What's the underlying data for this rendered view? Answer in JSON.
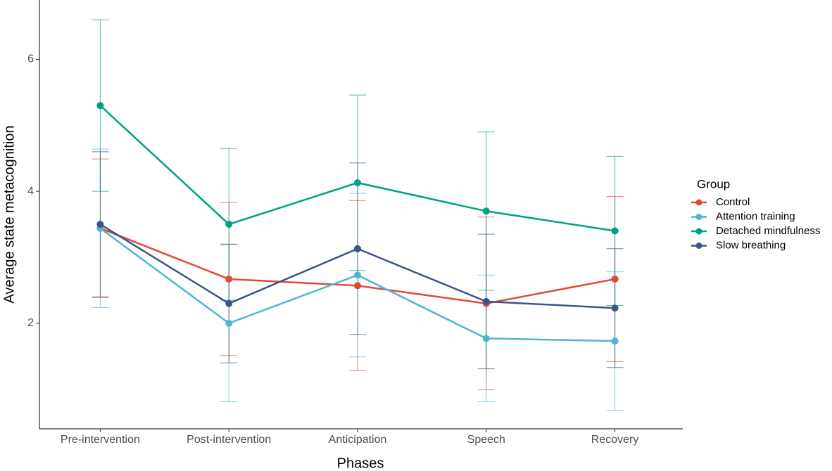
{
  "chart_data": {
    "type": "line",
    "x_label": "Phases",
    "y_label": "Average state metacognition",
    "categories": [
      "Pre-intervention",
      "Post-intervention",
      "Anticipation",
      "Speech",
      "Recovery"
    ],
    "ylim": [
      0.4,
      6.9
    ],
    "yticks": [
      2,
      4,
      6
    ],
    "legend_title": "Group",
    "legend": "right",
    "series": [
      {
        "name": "Control",
        "color": "#e04b36",
        "values": [
          3.44,
          2.67,
          2.57,
          2.3,
          2.67
        ],
        "errors": [
          1.05,
          1.16,
          1.29,
          1.31,
          1.25
        ]
      },
      {
        "name": "Attention training",
        "color": "#4db6d3",
        "values": [
          3.44,
          2.0,
          2.73,
          1.77,
          1.73
        ],
        "errors": [
          1.2,
          1.19,
          1.24,
          0.96,
          1.05
        ]
      },
      {
        "name": "Detached mindfulness",
        "color": "#00a087",
        "values": [
          5.3,
          3.5,
          4.13,
          3.7,
          3.4
        ],
        "errors": [
          1.3,
          1.15,
          1.33,
          1.2,
          1.13
        ]
      },
      {
        "name": "Slow breathing",
        "color": "#3c5488",
        "values": [
          3.5,
          2.3,
          3.13,
          2.33,
          2.23
        ],
        "errors": [
          1.1,
          0.9,
          1.3,
          1.02,
          0.9
        ]
      }
    ]
  }
}
